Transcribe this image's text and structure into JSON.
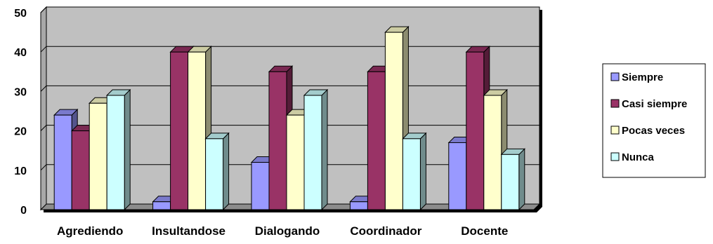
{
  "chart_data": {
    "type": "bar",
    "categories": [
      "Agrediendo",
      "Insultandose",
      "Dialogando",
      "Coordinador",
      "Docente"
    ],
    "series": [
      {
        "name": "Siempre",
        "values": [
          24,
          2,
          12,
          2,
          17
        ],
        "color": "#9999FF"
      },
      {
        "name": "Casi siempre",
        "values": [
          20,
          40,
          35,
          35,
          40
        ],
        "color": "#993366"
      },
      {
        "name": "Pocas veces",
        "values": [
          27,
          40,
          24,
          45,
          29
        ],
        "color": "#FFFFCC"
      },
      {
        "name": "Nunca",
        "values": [
          29,
          18,
          29,
          18,
          14
        ],
        "color": "#CCFFFF"
      }
    ],
    "yticks": [
      0,
      10,
      20,
      30,
      40,
      50
    ],
    "ylim": [
      0,
      50
    ],
    "grid": true,
    "legend_position": "right",
    "plot_background": "#C0C0C0"
  }
}
